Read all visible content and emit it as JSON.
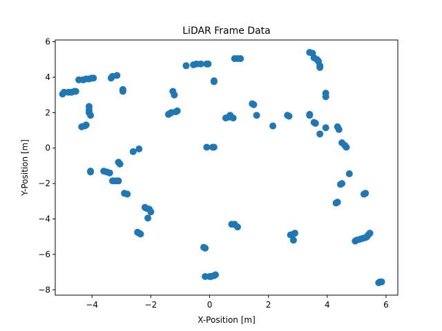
{
  "chart_data": {
    "type": "scatter",
    "title": "LiDAR Frame Data",
    "xlabel": "X-Position [m]",
    "ylabel": "Y-Position [m]",
    "xlim": [
      -5.25,
      6.4
    ],
    "ylim": [
      -8.3,
      6.1
    ],
    "xticks": [
      -4,
      -2,
      0,
      2,
      4,
      6
    ],
    "yticks": [
      -8,
      -6,
      -4,
      -2,
      0,
      2,
      4,
      6
    ],
    "grid": false,
    "marker_color": "#1f77b4",
    "series": [
      {
        "points": [
          [
            -5.0,
            3.05
          ],
          [
            -4.95,
            3.15
          ],
          [
            -4.8,
            3.15
          ],
          [
            -4.7,
            3.15
          ],
          [
            -4.6,
            3.2
          ],
          [
            -4.55,
            3.2
          ],
          [
            -4.45,
            3.85
          ],
          [
            -4.3,
            3.85
          ],
          [
            -4.2,
            3.9
          ],
          [
            -4.1,
            3.9
          ],
          [
            -4.0,
            3.95
          ],
          [
            -3.95,
            3.95
          ],
          [
            -3.35,
            3.95
          ],
          [
            -3.3,
            4.05
          ],
          [
            -3.15,
            4.1
          ],
          [
            -2.95,
            3.3
          ],
          [
            -2.95,
            3.2
          ],
          [
            -4.1,
            2.35
          ],
          [
            -4.1,
            2.15
          ],
          [
            -4.1,
            2.0
          ],
          [
            -4.05,
            1.85
          ],
          [
            -4.35,
            1.2
          ],
          [
            -4.25,
            1.25
          ],
          [
            -4.2,
            1.3
          ],
          [
            -2.4,
            -0.05
          ],
          [
            -2.6,
            -0.2
          ],
          [
            -3.1,
            -0.8
          ],
          [
            -3.05,
            -0.9
          ],
          [
            -4.05,
            -1.3
          ],
          [
            -4.05,
            -1.35
          ],
          [
            -3.6,
            -1.3
          ],
          [
            -3.5,
            -1.35
          ],
          [
            -3.4,
            -1.4
          ],
          [
            -3.3,
            -1.85
          ],
          [
            -3.2,
            -1.85
          ],
          [
            -3.1,
            -1.85
          ],
          [
            -2.9,
            -2.55
          ],
          [
            -2.8,
            -2.6
          ],
          [
            -2.2,
            -3.35
          ],
          [
            -2.15,
            -3.4
          ],
          [
            -2.05,
            -3.45
          ],
          [
            -2.0,
            -3.6
          ],
          [
            -2.1,
            -3.95
          ],
          [
            -2.45,
            -4.75
          ],
          [
            -2.4,
            -4.8
          ],
          [
            -2.35,
            -4.85
          ],
          [
            -1.25,
            3.2
          ],
          [
            -1.2,
            3.0
          ],
          [
            -1.4,
            1.9
          ],
          [
            -1.35,
            1.95
          ],
          [
            -1.3,
            2.0
          ],
          [
            -1.15,
            2.05
          ],
          [
            -1.1,
            2.1
          ],
          [
            -0.8,
            4.65
          ],
          [
            -0.55,
            4.7
          ],
          [
            -0.45,
            4.75
          ],
          [
            -0.3,
            4.75
          ],
          [
            -0.1,
            4.75
          ],
          [
            -0.05,
            4.75
          ],
          [
            0.15,
            3.8
          ],
          [
            0.15,
            3.75
          ],
          [
            -0.1,
            0.05
          ],
          [
            0.1,
            0.05
          ],
          [
            0.15,
            0.05
          ],
          [
            -0.2,
            -5.6
          ],
          [
            -0.15,
            -5.65
          ],
          [
            -0.15,
            -7.25
          ],
          [
            0.0,
            -7.25
          ],
          [
            0.05,
            -7.25
          ],
          [
            0.15,
            -7.2
          ],
          [
            0.2,
            -7.15
          ],
          [
            0.85,
            5.05
          ],
          [
            0.95,
            5.05
          ],
          [
            1.05,
            5.05
          ],
          [
            0.55,
            1.7
          ],
          [
            0.65,
            1.75
          ],
          [
            0.7,
            1.85
          ],
          [
            0.8,
            1.7
          ],
          [
            1.45,
            2.5
          ],
          [
            1.5,
            2.45
          ],
          [
            1.6,
            1.85
          ],
          [
            2.15,
            1.25
          ],
          [
            2.65,
            1.85
          ],
          [
            2.7,
            1.8
          ],
          [
            0.75,
            -4.3
          ],
          [
            0.85,
            -4.3
          ],
          [
            0.95,
            -4.45
          ],
          [
            2.75,
            -4.9
          ],
          [
            2.85,
            -4.85
          ],
          [
            2.9,
            -4.8
          ],
          [
            2.85,
            -5.2
          ],
          [
            3.4,
            5.4
          ],
          [
            3.5,
            5.35
          ],
          [
            3.55,
            5.1
          ],
          [
            3.65,
            5.0
          ],
          [
            3.7,
            4.9
          ],
          [
            3.75,
            4.65
          ],
          [
            3.75,
            4.55
          ],
          [
            3.95,
            3.1
          ],
          [
            3.95,
            2.9
          ],
          [
            3.4,
            1.9
          ],
          [
            3.4,
            1.85
          ],
          [
            3.55,
            1.45
          ],
          [
            3.6,
            1.4
          ],
          [
            3.75,
            0.8
          ],
          [
            3.95,
            1.15
          ],
          [
            4.35,
            1.2
          ],
          [
            4.4,
            1.05
          ],
          [
            4.5,
            0.3
          ],
          [
            4.6,
            0.15
          ],
          [
            4.65,
            0.05
          ],
          [
            4.75,
            -1.45
          ],
          [
            4.45,
            -2.05
          ],
          [
            4.5,
            -2.0
          ],
          [
            4.3,
            -3.1
          ],
          [
            4.35,
            -3.05
          ],
          [
            5.25,
            -2.6
          ],
          [
            5.3,
            -2.55
          ],
          [
            4.95,
            -5.25
          ],
          [
            5.0,
            -5.2
          ],
          [
            5.1,
            -5.15
          ],
          [
            5.2,
            -5.1
          ],
          [
            5.3,
            -5.05
          ],
          [
            5.35,
            -5.0
          ],
          [
            5.4,
            -4.9
          ],
          [
            5.45,
            -4.8
          ],
          [
            5.75,
            -7.6
          ],
          [
            5.8,
            -7.55
          ],
          [
            5.85,
            -7.55
          ]
        ]
      }
    ]
  }
}
